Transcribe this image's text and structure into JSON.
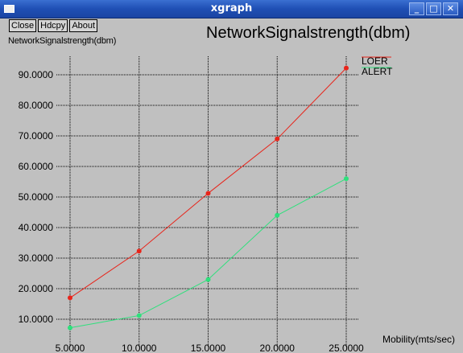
{
  "window": {
    "title": "xgraph",
    "controls": [
      "_",
      "□",
      "✕"
    ]
  },
  "toolbar": {
    "close_label": "Close",
    "hdcpy_label": "Hdcpy",
    "about_label": "About"
  },
  "chart_data": {
    "type": "line",
    "title": "NetworkSignalstrength(dbm)",
    "ylabel": "NetworkSignalstrength(dbm)",
    "xlabel": "Mobility(mts/sec)",
    "x": [
      5,
      10,
      15,
      20,
      25
    ],
    "xticks": [
      "5.0000",
      "10.0000",
      "15.0000",
      "20.0000",
      "25.0000"
    ],
    "yticks": [
      "10.0000",
      "20.0000",
      "30.0000",
      "40.0000",
      "50.0000",
      "60.0000",
      "70.0000",
      "80.0000",
      "90.0000"
    ],
    "xlim": [
      5,
      25
    ],
    "ylim": [
      10,
      90
    ],
    "grid": true,
    "legend_position": "top-right",
    "series": [
      {
        "name": "LOER",
        "color": "#e8241a",
        "values": [
          17,
          32.3,
          51.2,
          69,
          92.2
        ]
      },
      {
        "name": "ALERT",
        "color": "#2ee07c",
        "values": [
          7.2,
          11.2,
          23,
          44,
          56
        ]
      }
    ]
  }
}
